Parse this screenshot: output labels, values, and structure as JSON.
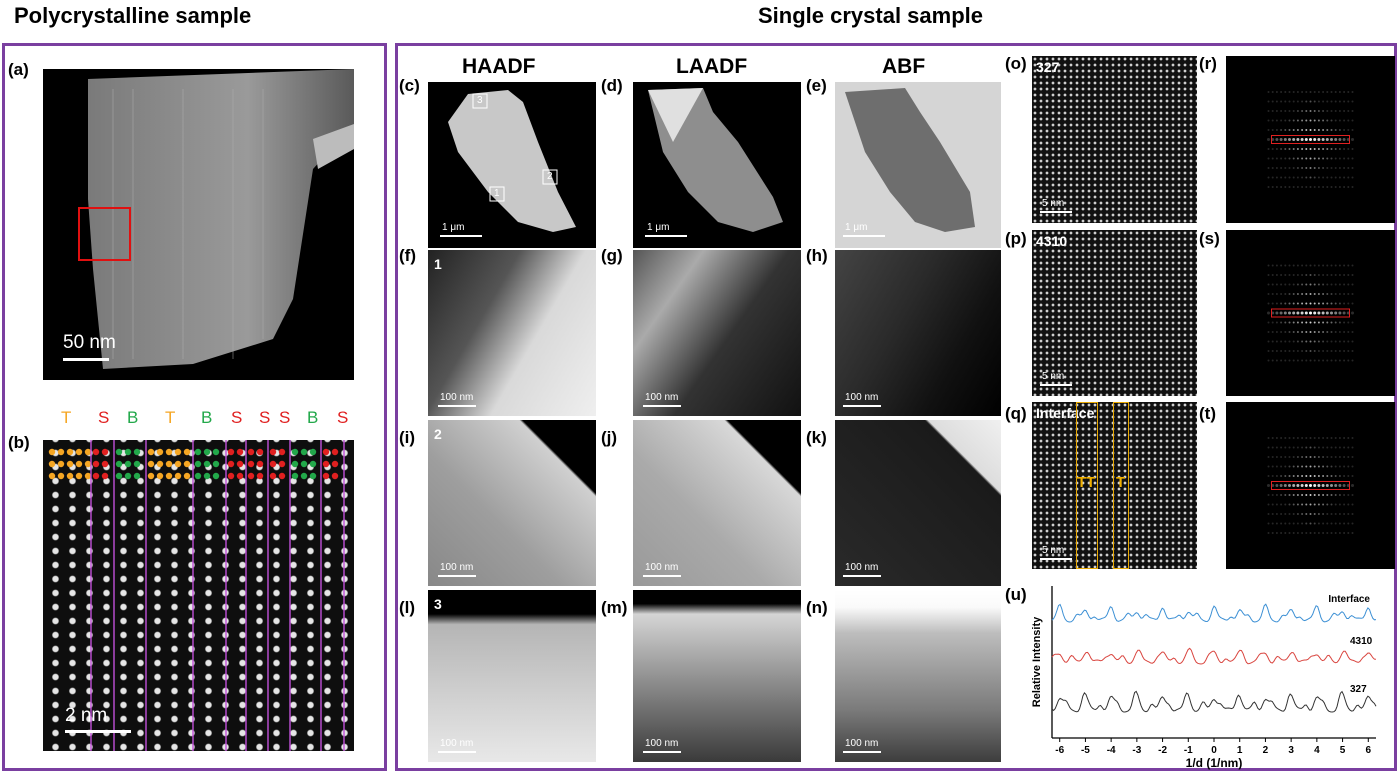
{
  "headings": {
    "left": "Polycrystalline sample",
    "right": "Single crystal sample"
  },
  "columns": {
    "haadf": "HAADF",
    "laadf": "LAADF",
    "abf": "ABF"
  },
  "panels": {
    "a": "(a)",
    "b": "(b)",
    "c": "(c)",
    "d": "(d)",
    "e": "(e)",
    "f": "(f)",
    "g": "(g)",
    "h": "(h)",
    "i": "(i)",
    "j": "(j)",
    "k": "(k)",
    "l": "(l)",
    "m": "(m)",
    "n": "(n)",
    "o": "(o)",
    "p": "(p)",
    "q": "(q)",
    "r": "(r)",
    "s": "(s)",
    "t": "(t)",
    "u": "(u)"
  },
  "scalebars": {
    "a": "50 nm",
    "b": "2 nm",
    "um": "1 μm",
    "nm100": "100 nm",
    "nm5": "5 nm"
  },
  "stacking_labels": [
    "T",
    "S",
    "B",
    "T",
    "B",
    "S",
    "S",
    "S",
    "B",
    "S"
  ],
  "stacking_colors": {
    "T": "#f5a623",
    "S": "#e02020",
    "B": "#22a84a"
  },
  "region_labels": {
    "r1": "1",
    "r2": "2",
    "r3": "3"
  },
  "hrstem_labels": {
    "o": "327",
    "p": "4310",
    "q": "Interface",
    "q_t1": "TT",
    "q_t2": "T"
  },
  "chart_data": {
    "type": "line",
    "xlabel": "1/d (1/nm)",
    "ylabel": "Relative Intensity",
    "xlim": [
      -6.3,
      6.3
    ],
    "xticks": [
      -6,
      -5,
      -4,
      -3,
      -2,
      -1,
      0,
      1,
      2,
      3,
      4,
      5,
      6
    ],
    "series": [
      {
        "name": "Interface",
        "color": "#3b8fd4"
      },
      {
        "name": "4310",
        "color": "#d9453f"
      },
      {
        "name": "327",
        "color": "#333333"
      }
    ]
  }
}
